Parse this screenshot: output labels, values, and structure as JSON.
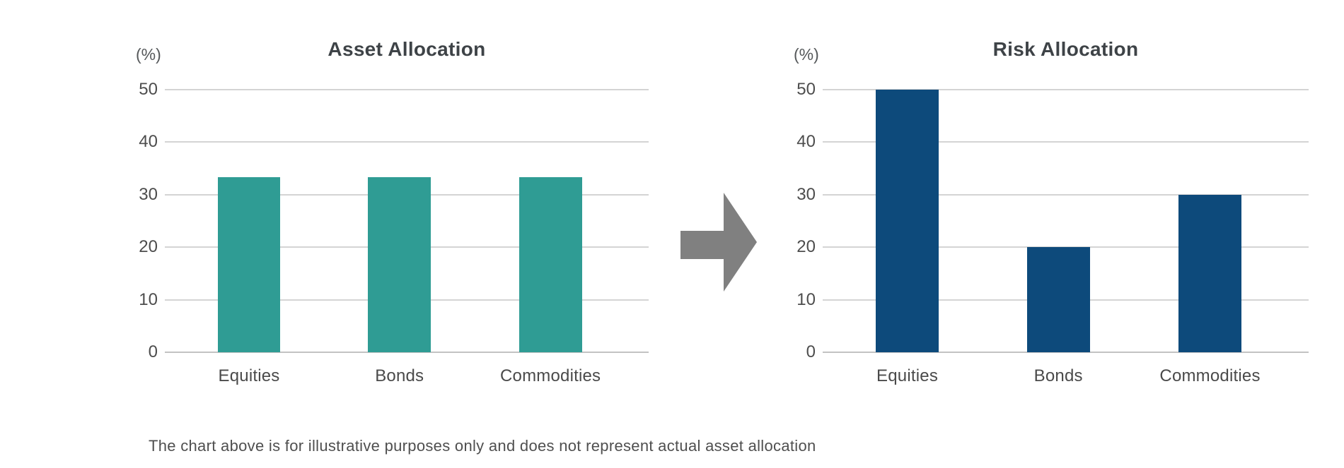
{
  "chart_data": [
    {
      "type": "bar",
      "title": "Asset Allocation",
      "ylabel": "(%)",
      "categories": [
        "Equities",
        "Bonds",
        "Commodities"
      ],
      "values": [
        33.3,
        33.3,
        33.3
      ],
      "ylim": [
        0,
        50
      ],
      "y_ticks": [
        50,
        40,
        30,
        20,
        10,
        0
      ],
      "bar_color": "#2f9c94",
      "grid": true,
      "legend": false
    },
    {
      "type": "bar",
      "title": "Risk Allocation",
      "ylabel": "(%)",
      "categories": [
        "Equities",
        "Bonds",
        "Commodities"
      ],
      "values": [
        50,
        20,
        30
      ],
      "ylim": [
        0,
        50
      ],
      "y_ticks": [
        50,
        40,
        30,
        20,
        10,
        0
      ],
      "bar_color": "#0d4a7b",
      "grid": true,
      "legend": false
    }
  ],
  "arrow": {
    "direction": "right",
    "color": "#808080"
  },
  "footer": {
    "text": "The chart above is for illustrative purposes only and does not represent actual asset allocation"
  }
}
